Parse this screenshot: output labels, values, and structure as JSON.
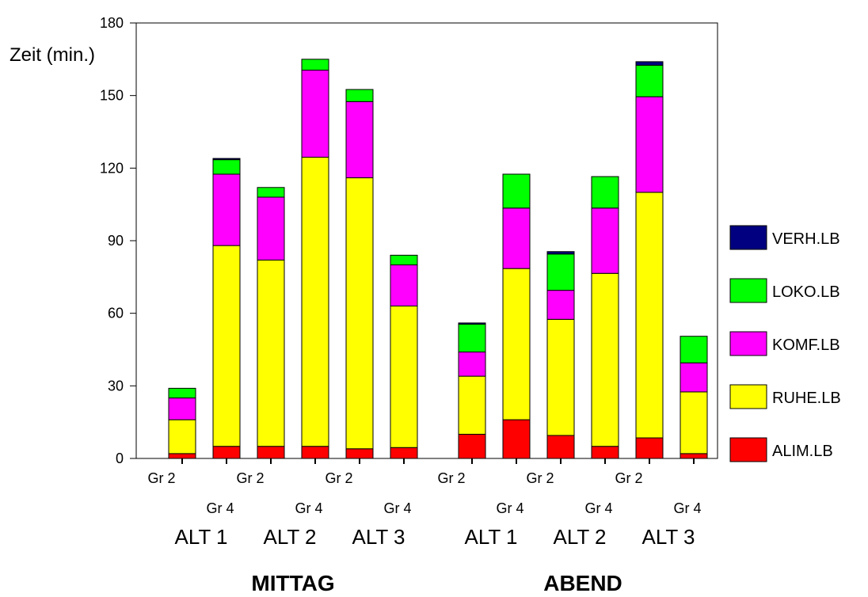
{
  "chart_data": {
    "type": "bar",
    "stacked": true,
    "ylabel": "Zeit (min.)",
    "ylim": [
      0,
      180
    ],
    "yticks": [
      0,
      30,
      60,
      90,
      120,
      150,
      180
    ],
    "grid": false,
    "legend_position": "right",
    "sections": [
      "MITTAG",
      "ABEND"
    ],
    "groups": [
      "ALT 1",
      "ALT 2",
      "ALT 3",
      "ALT 1",
      "ALT 2",
      "ALT 3"
    ],
    "categories": [
      "Gr 2",
      "Gr 4",
      "Gr 2",
      "Gr 4",
      "Gr 2",
      "Gr 4",
      "Gr 2",
      "Gr 4",
      "Gr 2",
      "Gr 4",
      "Gr 2",
      "Gr 4"
    ],
    "bar_section": [
      0,
      0,
      0,
      0,
      0,
      0,
      1,
      1,
      1,
      1,
      1,
      1
    ],
    "series": [
      {
        "name": "ALIM.LB",
        "color": "#ff0000",
        "values": [
          2,
          5,
          5,
          5,
          4,
          4.5,
          10,
          16,
          9.5,
          5,
          8.5,
          2
        ]
      },
      {
        "name": "RUHE.LB",
        "color": "#ffff00",
        "values": [
          14,
          83,
          77,
          119.5,
          112,
          58.5,
          24,
          62.5,
          48,
          71.5,
          101.5,
          25.5
        ]
      },
      {
        "name": "KOMF.LB",
        "color": "#ff00ff",
        "values": [
          9,
          29.5,
          26,
          36,
          31.5,
          17,
          10,
          25,
          12,
          27,
          39.5,
          12
        ]
      },
      {
        "name": "LOKO.LB",
        "color": "#00ff00",
        "values": [
          4,
          6,
          4,
          4.5,
          5,
          4,
          11.5,
          14,
          15,
          13,
          13,
          11
        ]
      },
      {
        "name": "VERH.LB",
        "color": "#000080",
        "values": [
          0,
          0.5,
          0,
          0,
          0,
          0,
          0.5,
          0,
          1,
          0,
          1.5,
          0
        ]
      }
    ]
  }
}
